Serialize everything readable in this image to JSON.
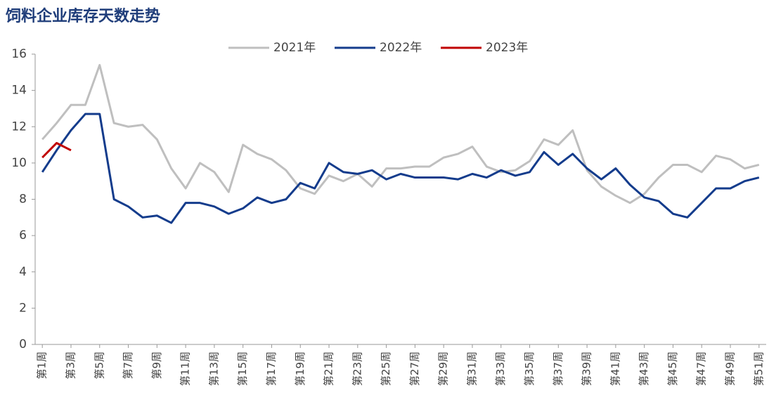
{
  "chart_data": {
    "type": "line",
    "title": "饲料企业库存天数走势",
    "categories": [
      "第1周",
      null,
      "第3周",
      null,
      "第5周",
      null,
      "第7周",
      null,
      "第9周",
      null,
      "第11周",
      null,
      "第13周",
      null,
      "第15周",
      null,
      "第17周",
      null,
      "第19周",
      null,
      "第21周",
      null,
      "第23周",
      null,
      "第25周",
      null,
      "第27周",
      null,
      "第29周",
      null,
      "第31周",
      null,
      "第33周",
      null,
      "第35周",
      null,
      "第37周",
      null,
      "第39周",
      null,
      "第41周",
      null,
      "第43周",
      null,
      "第45周",
      null,
      "第47周",
      null,
      "第49周",
      null,
      "第51周"
    ],
    "series": [
      {
        "name": "2021年",
        "color": "#bfbfbf",
        "values": [
          11.3,
          12.2,
          13.2,
          13.2,
          15.4,
          12.2,
          12.0,
          12.1,
          11.3,
          9.7,
          8.6,
          10.0,
          9.5,
          8.4,
          11.0,
          10.5,
          10.2,
          9.6,
          8.6,
          8.3,
          9.3,
          9.0,
          9.4,
          8.7,
          9.7,
          9.7,
          9.8,
          9.8,
          10.3,
          10.5,
          10.9,
          9.8,
          9.5,
          9.6,
          10.1,
          11.3,
          11.0,
          11.8,
          9.6,
          8.7,
          8.2,
          7.8,
          8.3,
          9.2,
          9.9,
          9.9,
          9.5,
          10.4,
          10.2,
          9.7,
          9.9
        ]
      },
      {
        "name": "2022年",
        "color": "#143c8c",
        "values": [
          9.5,
          10.7,
          11.8,
          12.7,
          12.7,
          8.0,
          7.6,
          7.0,
          7.1,
          6.7,
          7.8,
          7.8,
          7.6,
          7.2,
          7.5,
          8.1,
          7.8,
          8.0,
          8.9,
          8.6,
          10.0,
          9.5,
          9.4,
          9.6,
          9.1,
          9.4,
          9.2,
          9.2,
          9.2,
          9.1,
          9.4,
          9.2,
          9.6,
          9.3,
          9.5,
          10.6,
          9.9,
          10.5,
          9.7,
          9.1,
          9.7,
          8.8,
          8.1,
          7.9,
          7.2,
          7.0,
          7.8,
          8.6,
          8.6,
          9.0,
          9.2
        ]
      },
      {
        "name": "2023年",
        "color": "#c00000",
        "values": [
          10.3,
          11.1,
          10.7,
          null,
          null,
          null,
          null,
          null,
          null,
          null,
          null,
          null,
          null,
          null,
          null,
          null,
          null,
          null,
          null,
          null,
          null,
          null,
          null,
          null,
          null,
          null,
          null,
          null,
          null,
          null,
          null,
          null,
          null,
          null,
          null,
          null,
          null,
          null,
          null,
          null,
          null,
          null,
          null,
          null,
          null,
          null,
          null,
          null,
          null,
          null,
          null
        ]
      }
    ],
    "ylim": [
      0,
      16
    ],
    "yticks": [
      0,
      2,
      4,
      6,
      8,
      10,
      12,
      14,
      16
    ],
    "legend": "top"
  }
}
